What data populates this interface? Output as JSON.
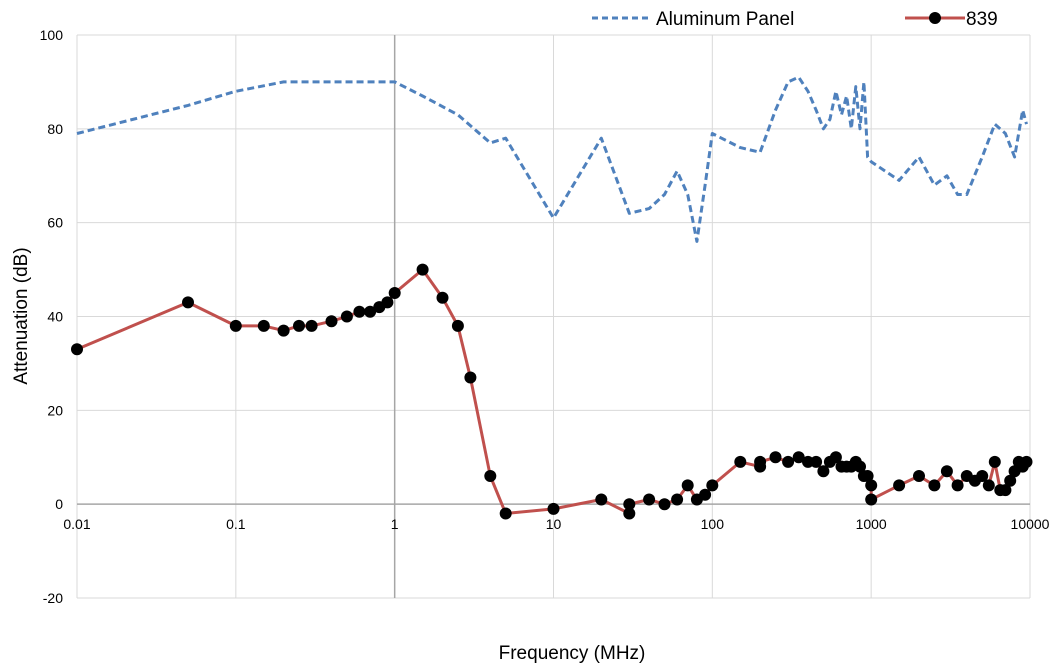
{
  "chart_data": {
    "type": "line",
    "title": "",
    "xlabel": "Frequency (MHz)",
    "ylabel": "Attenuation (dB)",
    "x_scale": "log",
    "xlim": [
      0.01,
      10000
    ],
    "ylim": [
      -20,
      100
    ],
    "x_ticks": [
      0.01,
      0.1,
      1,
      10,
      100,
      1000,
      10000
    ],
    "x_tick_labels": [
      "0.01",
      "0.1",
      "1",
      "10",
      "100",
      "1000",
      "10000"
    ],
    "y_ticks": [
      -20,
      0,
      20,
      40,
      60,
      80,
      100
    ],
    "y_tick_labels": [
      "-20",
      "0",
      "20",
      "40",
      "60",
      "80",
      "100"
    ],
    "grid": true,
    "legend_position": "top-right",
    "series": [
      {
        "name": "Aluminum Panel",
        "color": "#4f81bd",
        "line_style": "dashed",
        "marker": "none",
        "x": [
          0.01,
          0.05,
          0.1,
          0.2,
          0.3,
          0.5,
          1,
          1.5,
          2.5,
          4,
          5,
          10,
          20,
          30,
          40,
          50,
          60,
          70,
          80,
          90,
          100,
          150,
          200,
          250,
          300,
          350,
          400,
          450,
          500,
          550,
          600,
          650,
          700,
          750,
          800,
          850,
          900,
          950,
          1000,
          1500,
          2000,
          2500,
          3000,
          3500,
          4000,
          5000,
          6000,
          7000,
          8000,
          9000,
          9500
        ],
        "y": [
          79,
          85,
          88,
          90,
          90,
          90,
          90,
          87,
          83,
          77,
          78,
          61,
          78,
          62,
          63,
          66,
          71,
          66,
          56,
          68,
          79,
          76,
          75,
          84,
          90,
          91,
          88,
          84,
          80,
          82,
          88,
          83,
          87,
          80,
          89,
          80,
          90,
          74,
          73,
          69,
          74,
          68,
          70,
          66,
          66,
          74,
          81,
          79,
          74,
          84,
          81
        ]
      },
      {
        "name": "839",
        "color": "#c0504d",
        "line_style": "solid",
        "marker": "circle",
        "marker_color": "#000000",
        "x": [
          0.01,
          0.05,
          0.1,
          0.15,
          0.2,
          0.25,
          0.3,
          0.4,
          0.5,
          0.6,
          0.7,
          0.8,
          0.9,
          1,
          1.5,
          2,
          2.5,
          3,
          4,
          5,
          10,
          20,
          30,
          30,
          40,
          50,
          60,
          70,
          80,
          90,
          100,
          150,
          200,
          200,
          250,
          300,
          350,
          400,
          450,
          500,
          550,
          600,
          650,
          700,
          750,
          800,
          850,
          900,
          950,
          1000,
          1000,
          1500,
          2000,
          2500,
          3000,
          3500,
          4000,
          4500,
          5000,
          5500,
          6000,
          6500,
          7000,
          7500,
          8000,
          8500,
          9000,
          9500
        ],
        "y": [
          33,
          43,
          38,
          38,
          37,
          38,
          38,
          39,
          40,
          41,
          41,
          42,
          43,
          45,
          50,
          44,
          38,
          27,
          6,
          -2,
          -1,
          1,
          -2,
          0,
          1,
          0,
          1,
          4,
          1,
          2,
          4,
          9,
          8,
          9,
          10,
          9,
          10,
          9,
          9,
          7,
          9,
          10,
          8,
          8,
          8,
          9,
          8,
          6,
          6,
          4,
          1,
          4,
          6,
          4,
          7,
          4,
          6,
          5,
          6,
          4,
          9,
          3,
          3,
          5,
          7,
          9,
          8,
          9
        ]
      }
    ]
  }
}
